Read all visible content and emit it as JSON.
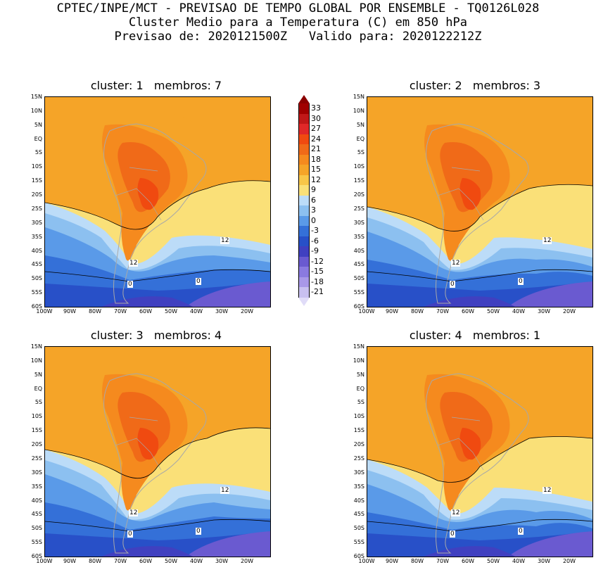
{
  "header": {
    "line1": "CPTEC/INPE/MCT - PREVISAO DE TEMPO GLOBAL POR ENSEMBLE - TQ0126L028",
    "line2": "Cluster Medio para a Temperatura (C) em 850 hPa",
    "line3": "Previsao de: 2020121500Z   Valido para: 2020122212Z"
  },
  "axes": {
    "lat_labels": [
      "15N",
      "10N",
      "5N",
      "EQ",
      "5S",
      "10S",
      "15S",
      "20S",
      "25S",
      "30S",
      "35S",
      "40S",
      "45S",
      "50S",
      "55S",
      "60S"
    ],
    "lon_labels": [
      "100W",
      "90W",
      "80W",
      "70W",
      "60W",
      "50W",
      "40W",
      "30W",
      "20W"
    ]
  },
  "colorbar": {
    "labels": [
      "33",
      "30",
      "27",
      "24",
      "21",
      "18",
      "15",
      "12",
      "9",
      "6",
      "3",
      "0",
      "-3",
      "-6",
      "-9",
      "-12",
      "-15",
      "-18",
      "-21"
    ],
    "colors": [
      "#a00000",
      "#c01818",
      "#e02828",
      "#f04a10",
      "#f06a18",
      "#f58a1e",
      "#f5a428",
      "#f8c648",
      "#fae078",
      "#bcdcf8",
      "#8cc0f0",
      "#5a9ae8",
      "#3470d8",
      "#2850c8",
      "#4040c0",
      "#6a5ad0",
      "#8a7ae0",
      "#a898e8",
      "#c8c0f0"
    ]
  },
  "panels": [
    {
      "title": "cluster: 1   membros: 7",
      "contour_labels": [
        "12",
        "12",
        "0",
        "0"
      ]
    },
    {
      "title": "cluster: 2   membros: 3",
      "contour_labels": [
        "12",
        "12",
        "0",
        "0"
      ]
    },
    {
      "title": "cluster: 3   membros: 4",
      "contour_labels": [
        "12",
        "12",
        "0",
        "0"
      ]
    },
    {
      "title": "cluster: 4   membros: 1",
      "contour_labels": [
        "12",
        "12",
        "0",
        "0"
      ]
    }
  ]
}
